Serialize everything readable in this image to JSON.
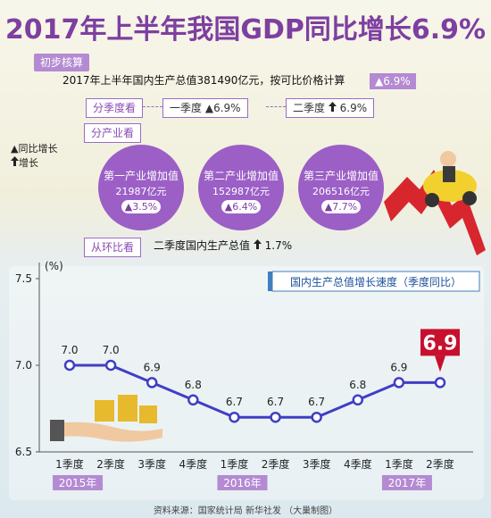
{
  "title": "2017年上半年我国GDP同比增长6.9%",
  "prelim": {
    "tag": "初步核算",
    "text": "2017年上半年国内生产总值381490亿元，按可比价格计算",
    "growth": "▲6.9%"
  },
  "quarterly": {
    "tag": "分季度看",
    "q1_label": "一季度",
    "q1_value": "▲6.9%",
    "q2_label": "二季度",
    "q2_value": "6.9%"
  },
  "legend": {
    "yoy": "同比增长",
    "growth": "增长"
  },
  "industry": {
    "tag": "分产业看",
    "items": [
      {
        "label": "第一产业增加值",
        "value": "21987亿元",
        "growth": "▲3.5%"
      },
      {
        "label": "第二产业增加值",
        "value": "152987亿元",
        "growth": "▲6.4%"
      },
      {
        "label": "第三产业增加值",
        "value": "206516亿元",
        "growth": "▲7.7%"
      }
    ]
  },
  "qoq": {
    "tag": "从环比看",
    "text": "二季度国内生产总值",
    "value": "1.7%"
  },
  "chart_data": {
    "type": "line",
    "title": "国内生产总值增长速度（季度同比）",
    "ylabel": "(%)",
    "ylim": [
      6.5,
      7.5
    ],
    "yticks": [
      6.5,
      7.0,
      7.5
    ],
    "categories": [
      "1季度",
      "2季度",
      "3季度",
      "4季度",
      "1季度",
      "2季度",
      "3季度",
      "4季度",
      "1季度",
      "2季度"
    ],
    "values": [
      7.0,
      7.0,
      6.9,
      6.8,
      6.7,
      6.7,
      6.7,
      6.8,
      6.9,
      6.9
    ],
    "data_labels": [
      "7.0",
      "7.0",
      "6.9",
      "6.8",
      "6.7",
      "6.7",
      "6.7",
      "6.8",
      "6.9",
      "6.9"
    ],
    "highlight_label": "6.9",
    "years": [
      "2015年",
      "2016年",
      "2017年"
    ],
    "grid": false,
    "line_color": "#3f3fc4",
    "highlight_color": "#c8102e"
  },
  "source": "资料来源：国家统计局   新华社发   （大巢制图）",
  "colors": {
    "accent": "#7e3fa0",
    "circle": "#9b5fc6",
    "tag": "#b48ad2"
  }
}
